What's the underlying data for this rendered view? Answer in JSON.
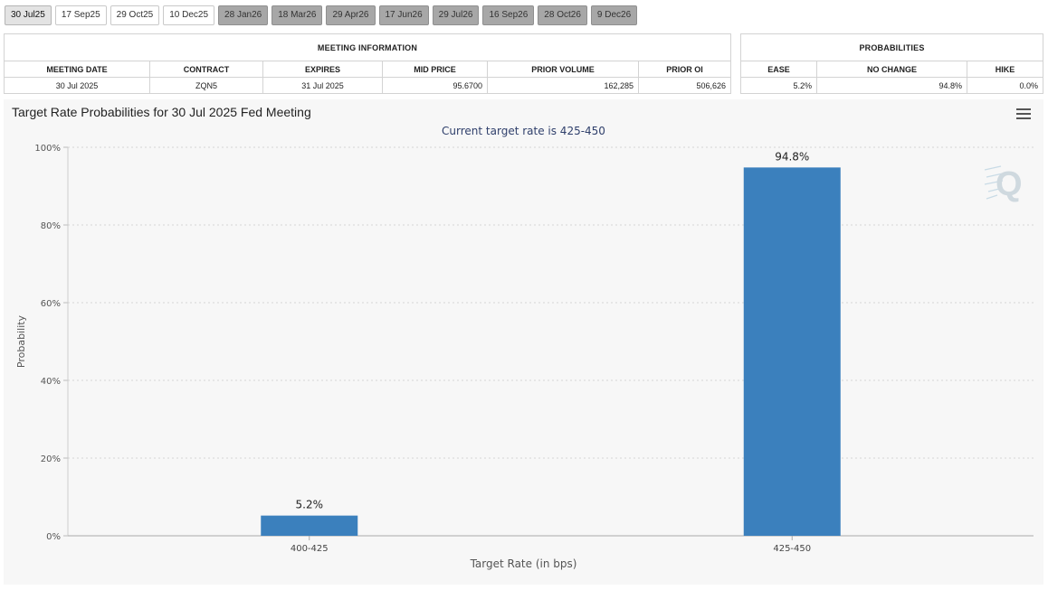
{
  "tabs": [
    {
      "label": "30 Jul25",
      "state": "active"
    },
    {
      "label": "17 Sep25",
      "state": "normal"
    },
    {
      "label": "29 Oct25",
      "state": "normal"
    },
    {
      "label": "10 Dec25",
      "state": "normal"
    },
    {
      "label": "28 Jan26",
      "state": "future"
    },
    {
      "label": "18 Mar26",
      "state": "future"
    },
    {
      "label": "29 Apr26",
      "state": "future"
    },
    {
      "label": "17 Jun26",
      "state": "future"
    },
    {
      "label": "29 Jul26",
      "state": "future"
    },
    {
      "label": "16 Sep26",
      "state": "future"
    },
    {
      "label": "28 Oct26",
      "state": "future"
    },
    {
      "label": "9 Dec26",
      "state": "future"
    }
  ],
  "meeting_info": {
    "group_label": "MEETING INFORMATION",
    "headers": [
      "MEETING DATE",
      "CONTRACT",
      "EXPIRES",
      "MID PRICE",
      "PRIOR VOLUME",
      "PRIOR OI"
    ],
    "row": [
      "30 Jul 2025",
      "ZQN5",
      "31 Jul 2025",
      "95.6700",
      "162,285",
      "506,626"
    ]
  },
  "probabilities": {
    "group_label": "PROBABILITIES",
    "headers": [
      "EASE",
      "NO CHANGE",
      "HIKE"
    ],
    "row": [
      "5.2%",
      "94.8%",
      "0.0%"
    ]
  },
  "chart": {
    "title": "Target Rate Probabilities for 30 Jul 2025 Fed Meeting",
    "menu_icon": "hamburger-menu-icon",
    "bar_color": "#3b80bd"
  },
  "chart_data": {
    "type": "bar",
    "title": "Target Rate Probabilities for 30 Jul 2025 Fed Meeting",
    "subtitle": "Current target rate is 425-450",
    "categories": [
      "400-425",
      "425-450"
    ],
    "values": [
      5.2,
      94.8
    ],
    "data_labels": [
      "5.2%",
      "94.8%"
    ],
    "xlabel": "Target Rate (in bps)",
    "ylabel": "Probability",
    "ylim": [
      0,
      100
    ],
    "yticks": [
      0,
      20,
      40,
      60,
      80,
      100
    ],
    "ytick_labels": [
      "0%",
      "20%",
      "40%",
      "60%",
      "80%",
      "100%"
    ],
    "grid": true,
    "legend": "none"
  }
}
